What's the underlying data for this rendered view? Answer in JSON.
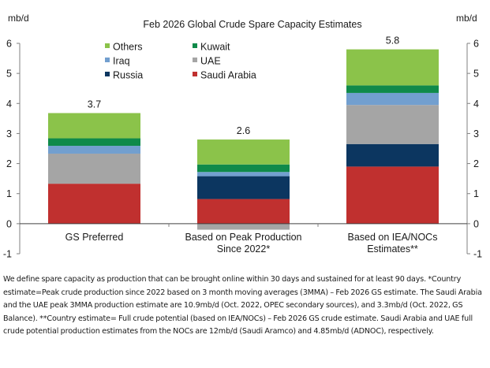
{
  "chart_data": {
    "type": "bar",
    "stacked": true,
    "title": "Feb 2026 Global Crude Spare Capacity Estimates",
    "ylabel_left": "mb/d",
    "ylabel_right": "mb/d",
    "ylim": [
      -1,
      6
    ],
    "yticks": [
      -1,
      0,
      1,
      2,
      3,
      4,
      5,
      6
    ],
    "grid": false,
    "legend_position": "top-left",
    "categories": [
      "GS Preferred",
      "Based on Peak Production Since 2022*",
      "Based on IEA/NOCs Estimates**"
    ],
    "category_lines": [
      [
        "GS Preferred"
      ],
      [
        "Based on Peak Production",
        "Since 2022*"
      ],
      [
        "Based on IEA/NOCs",
        "Estimates**"
      ]
    ],
    "totals": [
      "3.7",
      "2.6",
      "5.8"
    ],
    "series": [
      {
        "name": "Saudi Arabia",
        "color": "#c0302f",
        "values": [
          1.33,
          0.82,
          1.9
        ]
      },
      {
        "name": "Russia",
        "color": "#0c3660",
        "values": [
          0,
          0.76,
          0.75
        ]
      },
      {
        "name": "UAE",
        "color": "#a5a5a5",
        "values": [
          1.0,
          -0.2,
          1.3
        ]
      },
      {
        "name": "Iraq",
        "color": "#729fcf",
        "values": [
          0.26,
          0.14,
          0.4
        ]
      },
      {
        "name": "Kuwait",
        "color": "#0f8a4a",
        "values": [
          0.25,
          0.25,
          0.25
        ]
      },
      {
        "name": "Others",
        "color": "#8bc34a",
        "values": [
          0.84,
          0.83,
          1.2
        ]
      }
    ],
    "legend_order": [
      "Others",
      "Kuwait",
      "Iraq",
      "UAE",
      "Russia",
      "Saudi Arabia"
    ]
  },
  "footnote": "We define spare capacity as production that can be brought online within 30 days and sustained for at least 90 days. *Country estimate=Peak crude production since 2022 based on 3 month moving averages (3MMA) – Feb 2026 GS estimate. The Saudi Arabia and the UAE peak 3MMA production estimate are 10.9mb/d (Oct. 2022, OPEC secondary sources), and 3.3mb/d (Oct. 2022, GS Balance). **Country estimate= Full crude potential (based on IEA/NOCs) – Feb 2026 GS crude estimate. Saudi Arabia and UAE full crude potential production estimates from the NOCs are 12mb/d (Saudi Aramco) and 4.85mb/d (ADNOC), respectively."
}
